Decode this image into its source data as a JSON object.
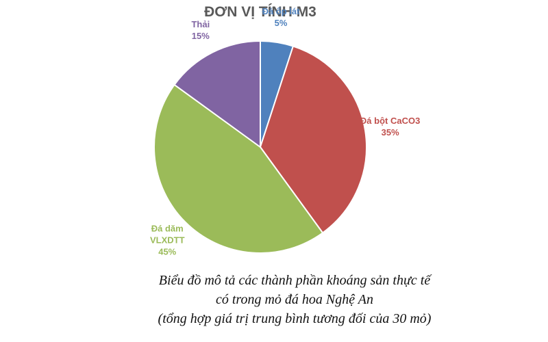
{
  "chart_data": {
    "type": "pie",
    "title": "ĐƠN VỊ TÍNH M3",
    "categories": [
      "Đá ốp lát",
      "Đá bột CaCO3",
      "Đá dăm\nVLXDTT",
      "Thải"
    ],
    "values": [
      5,
      35,
      45,
      15
    ],
    "value_labels": [
      "5%",
      "35%",
      "45%",
      "15%"
    ],
    "colors": [
      "#4f81bd",
      "#c0504d",
      "#9bbb59",
      "#8064a2"
    ],
    "caption": [
      "Biểu đồ mô tả các thành phần khoáng sản thực tế",
      "có trong mỏ đá hoa Nghệ An",
      "(tổng hợp giá trị trung bình tương đối của 30 mỏ)"
    ]
  }
}
